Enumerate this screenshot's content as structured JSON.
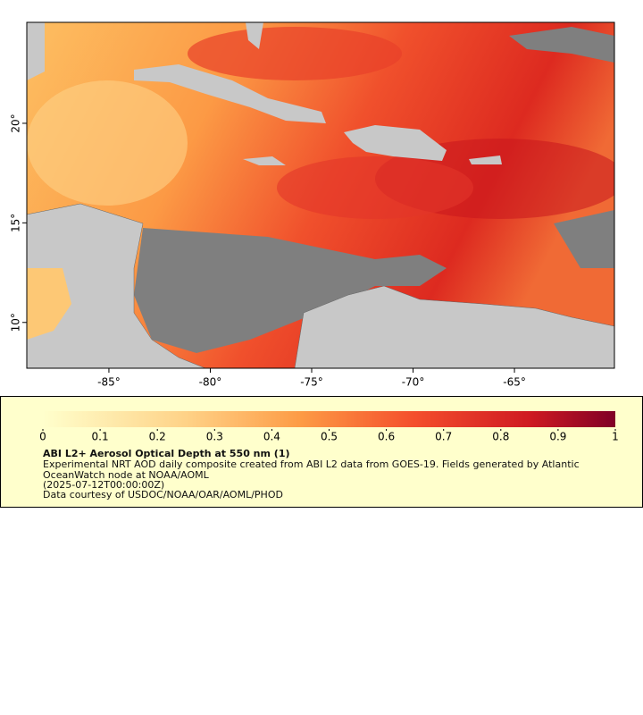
{
  "map": {
    "xlim": [
      -89.05,
      -60.07
    ],
    "ylim": [
      7.7,
      25.07
    ],
    "xticks": [
      {
        "value": -85,
        "label": "-85°"
      },
      {
        "value": -80,
        "label": "-80°"
      },
      {
        "value": -75,
        "label": "-75°"
      },
      {
        "value": -70,
        "label": "-70°"
      },
      {
        "value": -65,
        "label": "-65°"
      }
    ],
    "yticks": [
      {
        "value": 10,
        "label": "10°"
      },
      {
        "value": 15,
        "label": "15°"
      },
      {
        "value": 20,
        "label": "20°"
      }
    ]
  },
  "legend": {
    "range": [
      0,
      1
    ],
    "ticks": [
      0,
      0.1,
      0.2,
      0.3,
      0.4,
      0.5,
      0.6,
      0.7,
      0.8,
      0.9,
      1
    ],
    "title": "ABI L2+ Aerosol Optical Depth at 550 nm (1)",
    "description": "Experimental NRT AOD daily composite created from ABI L2 data from GOES-19. Fields generated by Atlantic OceanWatch node at NOAA/AOML",
    "time": "(2025-07-12T00:00:00Z)",
    "credit": "Data courtesy of USDOC/NOAA/OAR/AOML/PHOD"
  }
}
